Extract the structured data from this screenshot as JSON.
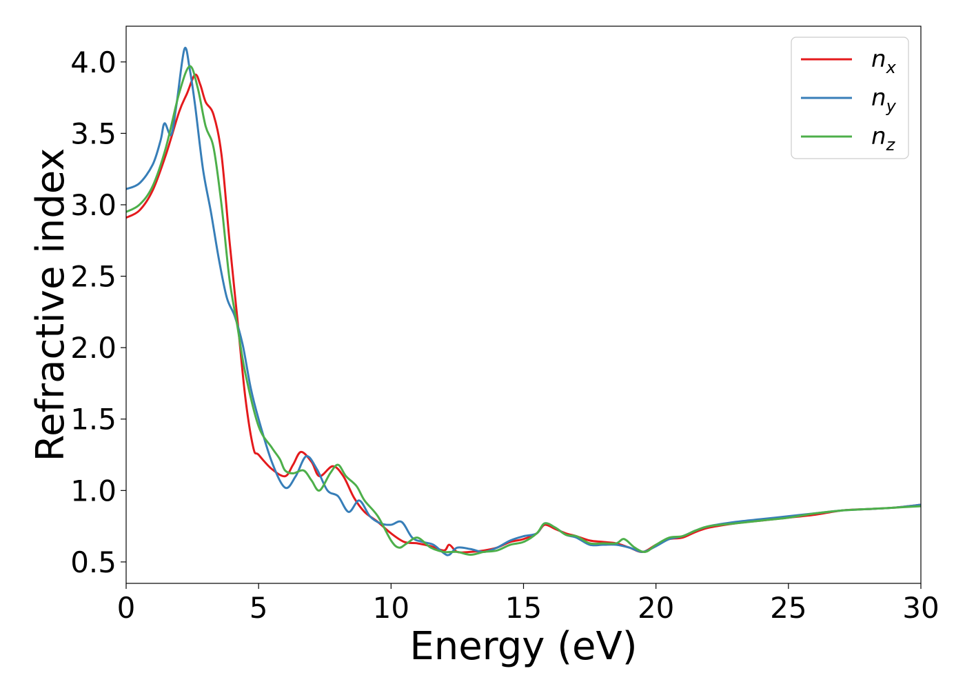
{
  "chart_data": {
    "type": "line",
    "title": "",
    "xlabel": "Energy (eV)",
    "ylabel": "Refractive index",
    "xlim": [
      0,
      30
    ],
    "ylim": [
      0.35,
      4.25
    ],
    "xticks": [
      0,
      5,
      10,
      15,
      20,
      25,
      30
    ],
    "xtick_labels": [
      "0",
      "5",
      "10",
      "15",
      "20",
      "25",
      "30"
    ],
    "yticks": [
      0.5,
      1.0,
      1.5,
      2.0,
      2.5,
      3.0,
      3.5,
      4.0
    ],
    "ytick_labels": [
      "0.5",
      "1.0",
      "1.5",
      "2.0",
      "2.5",
      "3.0",
      "3.5",
      "4.0"
    ],
    "grid": false,
    "legend_position": "top-right",
    "series": [
      {
        "name": "n_x",
        "label_base": "n",
        "label_sub": "x",
        "color": "#e41a1c",
        "x": [
          0,
          0.5,
          1.0,
          1.5,
          2.0,
          2.3,
          2.6,
          2.8,
          3.0,
          3.3,
          3.6,
          3.9,
          4.2,
          4.5,
          4.8,
          5.0,
          5.5,
          6.0,
          6.3,
          6.6,
          7.0,
          7.3,
          7.8,
          8.2,
          8.6,
          9.0,
          9.5,
          10.0,
          10.5,
          11.0,
          11.5,
          12.0,
          12.2,
          12.5,
          13.0,
          13.5,
          14.0,
          14.5,
          15.0,
          15.5,
          15.8,
          16.2,
          16.6,
          17.0,
          17.5,
          18.0,
          18.5,
          19.0,
          19.5,
          20.0,
          20.5,
          21.0,
          21.5,
          22.0,
          23.0,
          24.0,
          25.0,
          26.0,
          27.0,
          28.0,
          29.0,
          30.0
        ],
        "y": [
          2.91,
          2.96,
          3.1,
          3.35,
          3.65,
          3.78,
          3.91,
          3.84,
          3.72,
          3.63,
          3.35,
          2.75,
          2.2,
          1.65,
          1.3,
          1.25,
          1.15,
          1.1,
          1.18,
          1.27,
          1.2,
          1.1,
          1.17,
          1.1,
          0.95,
          0.85,
          0.78,
          0.7,
          0.64,
          0.63,
          0.61,
          0.58,
          0.62,
          0.57,
          0.57,
          0.58,
          0.6,
          0.64,
          0.66,
          0.7,
          0.76,
          0.73,
          0.7,
          0.68,
          0.65,
          0.64,
          0.63,
          0.6,
          0.57,
          0.62,
          0.66,
          0.67,
          0.71,
          0.74,
          0.77,
          0.79,
          0.81,
          0.83,
          0.86,
          0.87,
          0.88,
          0.9
        ]
      },
      {
        "name": "n_y",
        "label_base": "n",
        "label_sub": "y",
        "color": "#377eb8",
        "x": [
          0,
          0.5,
          1.0,
          1.3,
          1.45,
          1.7,
          1.9,
          2.2,
          2.4,
          2.6,
          2.9,
          3.2,
          3.5,
          3.8,
          4.1,
          4.4,
          4.7,
          5.0,
          5.5,
          6.0,
          6.4,
          6.8,
          7.2,
          7.6,
          8.0,
          8.4,
          8.8,
          9.2,
          9.6,
          10.0,
          10.4,
          10.8,
          11.2,
          11.6,
          12.0,
          12.2,
          12.5,
          13.0,
          13.5,
          14.0,
          14.5,
          15.0,
          15.5,
          15.8,
          16.2,
          16.6,
          17.0,
          17.5,
          18.0,
          18.5,
          19.0,
          19.5,
          20.0,
          20.5,
          21.0,
          21.5,
          22.0,
          23.0,
          24.0,
          25.0,
          26.0,
          27.0,
          28.0,
          29.0,
          30.0
        ],
        "y": [
          3.11,
          3.15,
          3.28,
          3.45,
          3.57,
          3.49,
          3.7,
          4.09,
          3.95,
          3.7,
          3.25,
          2.95,
          2.62,
          2.35,
          2.22,
          2.02,
          1.72,
          1.5,
          1.2,
          1.02,
          1.1,
          1.24,
          1.15,
          1.0,
          0.96,
          0.85,
          0.93,
          0.82,
          0.77,
          0.76,
          0.78,
          0.67,
          0.64,
          0.62,
          0.56,
          0.55,
          0.6,
          0.59,
          0.57,
          0.6,
          0.65,
          0.68,
          0.7,
          0.77,
          0.74,
          0.69,
          0.67,
          0.62,
          0.62,
          0.62,
          0.6,
          0.57,
          0.61,
          0.66,
          0.68,
          0.72,
          0.75,
          0.78,
          0.8,
          0.82,
          0.84,
          0.86,
          0.87,
          0.88,
          0.9
        ]
      },
      {
        "name": "n_z",
        "label_base": "n",
        "label_sub": "z",
        "color": "#4daf4a",
        "x": [
          0,
          0.5,
          1.0,
          1.5,
          2.0,
          2.4,
          2.7,
          3.0,
          3.3,
          3.6,
          3.9,
          4.2,
          4.5,
          5.0,
          5.5,
          5.8,
          6.0,
          6.3,
          6.7,
          7.0,
          7.3,
          7.7,
          8.0,
          8.3,
          8.7,
          9.0,
          9.5,
          10.0,
          10.3,
          10.6,
          11.0,
          11.5,
          12.0,
          12.5,
          13.0,
          13.5,
          14.0,
          14.5,
          15.0,
          15.5,
          15.8,
          16.2,
          16.6,
          17.0,
          17.5,
          18.0,
          18.5,
          18.8,
          19.2,
          19.6,
          20.0,
          20.5,
          21.0,
          21.5,
          22.0,
          23.0,
          24.0,
          25.0,
          26.0,
          27.0,
          28.0,
          29.0,
          30.0
        ],
        "y": [
          2.95,
          3.0,
          3.13,
          3.4,
          3.78,
          3.97,
          3.82,
          3.55,
          3.4,
          3.0,
          2.48,
          2.15,
          1.82,
          1.45,
          1.3,
          1.22,
          1.14,
          1.12,
          1.14,
          1.07,
          1.0,
          1.12,
          1.18,
          1.1,
          1.03,
          0.93,
          0.82,
          0.65,
          0.6,
          0.63,
          0.67,
          0.6,
          0.57,
          0.57,
          0.55,
          0.57,
          0.58,
          0.62,
          0.64,
          0.7,
          0.77,
          0.74,
          0.69,
          0.68,
          0.63,
          0.63,
          0.63,
          0.66,
          0.6,
          0.57,
          0.62,
          0.67,
          0.68,
          0.72,
          0.75,
          0.77,
          0.79,
          0.81,
          0.84,
          0.86,
          0.87,
          0.88,
          0.89
        ]
      }
    ]
  }
}
